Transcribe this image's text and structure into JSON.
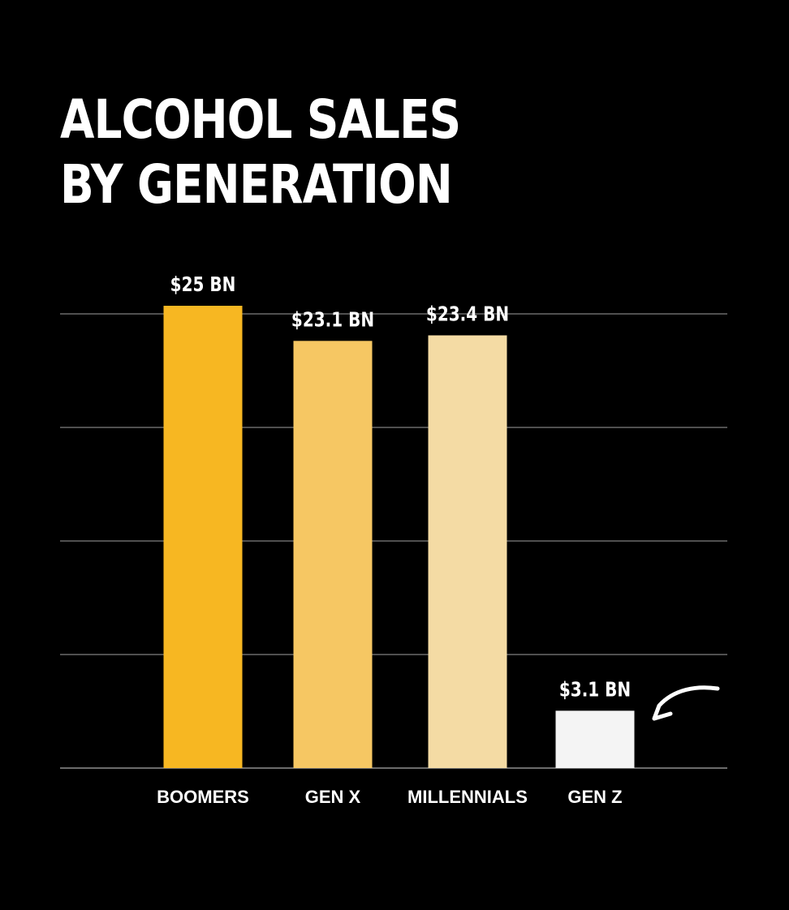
{
  "colors": {
    "background": "#000000",
    "gridline": "#6b6b6b",
    "text": "#ffffff",
    "arrow": "#ffffff"
  },
  "chart_data": {
    "type": "bar",
    "title_lines": [
      "ALCOHOL SALES",
      "BY GENERATION"
    ],
    "categories": [
      "BOOMERS",
      "GEN X",
      "MILLENNIALS",
      "GEN Z"
    ],
    "values": [
      25,
      23.1,
      23.4,
      3.1
    ],
    "value_labels": [
      "$25 BN",
      "$23.1 BN",
      "$23.4 BN",
      "$3.1 BN"
    ],
    "bar_colors": [
      "#f7b722",
      "#f6c763",
      "#f4dba4",
      "#f4f4f4"
    ],
    "unit": "$ BN",
    "ylim": [
      0,
      25
    ],
    "gridlines": 5,
    "grid": true,
    "y_axis_labels_shown": false,
    "annotation": {
      "type": "arrow",
      "target": "GEN Z"
    }
  }
}
